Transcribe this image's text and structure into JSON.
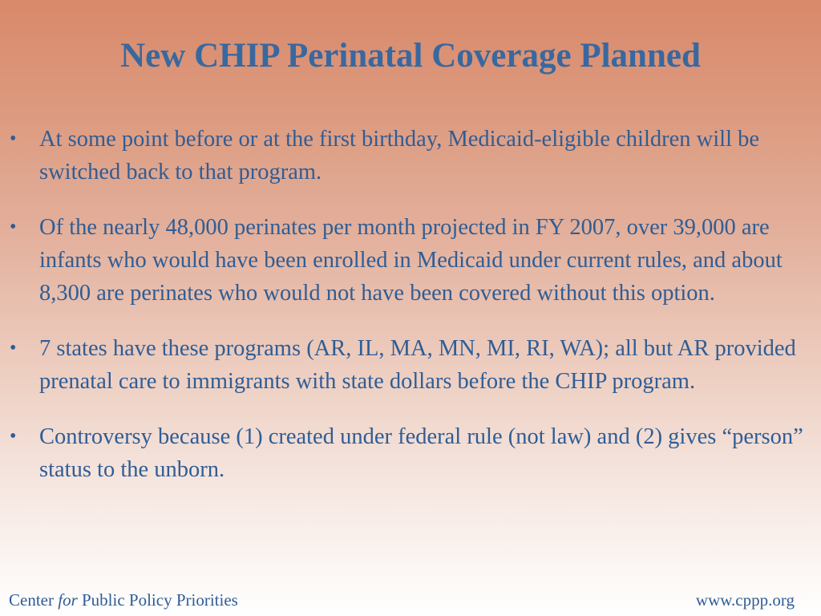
{
  "slide": {
    "title": "New CHIP Perinatal Coverage Planned",
    "bullet_symbol": "•",
    "bullets": [
      "At some point before or at the first birthday, Medicaid-eligible children will be switched back to that program.",
      "Of the nearly 48,000 perinates per month projected in FY 2007, over 39,000 are infants who would have been enrolled in Medicaid under current rules, and about 8,300 are perinates who would not have been covered without this option.",
      "7 states have these programs (AR, IL, MA, MN, MI, RI, WA); all but AR provided prenatal care to immigrants with state dollars before the CHIP program.",
      "Controversy because (1) created under federal rule (not law) and (2) gives “person” status to the unborn."
    ]
  },
  "footer": {
    "org_part1": "Center ",
    "org_part2": "for",
    "org_part3": " Public Policy Priorities",
    "website": "www.cppp.org"
  },
  "colors": {
    "text": "#2f5d95",
    "title": "#3868a0",
    "background_top": "#d9896a",
    "background_bottom": "#ffffff"
  }
}
